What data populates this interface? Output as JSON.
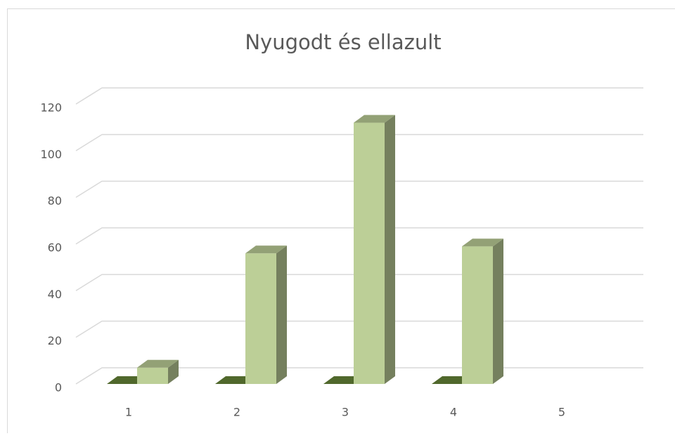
{
  "chart_data": {
    "type": "bar3d",
    "title": "Nyugodt és ellazult",
    "categories": [
      "1",
      "2",
      "3",
      "4",
      "5"
    ],
    "series": [
      {
        "color": "#6b8a3a",
        "values": [
          0,
          0,
          0,
          0,
          null
        ]
      },
      {
        "color": "#bccf97",
        "values": [
          7,
          56,
          112,
          59,
          null
        ]
      }
    ],
    "ylim": [
      0,
      120
    ],
    "yticks": [
      0,
      20,
      40,
      60,
      80,
      100,
      120
    ],
    "grid": true
  }
}
